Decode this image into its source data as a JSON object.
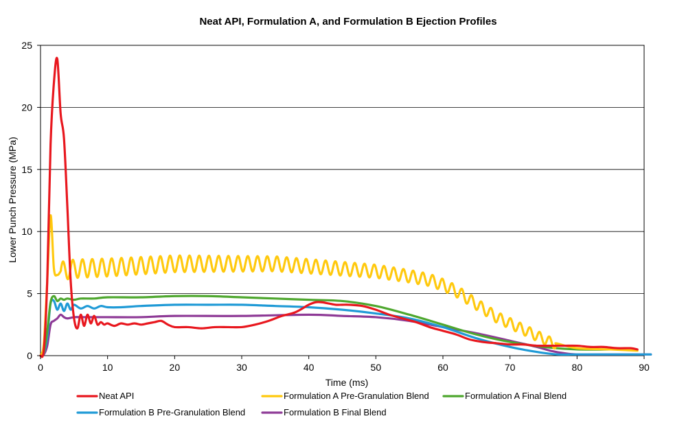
{
  "chart_data": {
    "type": "line",
    "title": "Neat API, Formulation A, and Formulation B Ejection Profiles",
    "xlabel": "Time (ms)",
    "ylabel": "Lower Punch Pressure (MPa)",
    "xlim": [
      0,
      90
    ],
    "ylim": [
      0,
      25
    ],
    "xticks": [
      0,
      10,
      20,
      30,
      40,
      50,
      60,
      70,
      80,
      90
    ],
    "yticks": [
      0,
      5,
      10,
      15,
      20,
      25
    ],
    "grid": "horizontal",
    "legend_position": "bottom",
    "series": [
      {
        "name": "Neat API",
        "color": "#e8171e",
        "x": [
          0,
          0.5,
          1,
          1.5,
          2,
          2.5,
          3,
          3.5,
          4,
          4.5,
          5,
          5.5,
          6,
          6.5,
          7,
          7.5,
          8,
          8.5,
          9,
          9.5,
          10,
          11,
          12,
          13,
          14,
          15,
          16,
          17,
          18,
          19,
          20,
          22,
          24,
          26,
          28,
          30,
          32,
          34,
          36,
          38,
          40,
          41,
          42,
          43,
          44,
          45,
          46,
          48,
          50,
          52,
          54,
          56,
          58,
          60,
          62,
          64,
          66,
          68,
          70,
          72,
          74,
          76,
          78,
          80,
          82,
          84,
          86,
          88,
          89
        ],
        "y": [
          0,
          0.5,
          6,
          17,
          22,
          23.9,
          19.5,
          17.5,
          12,
          6,
          3,
          2.2,
          3.3,
          2.4,
          3.3,
          2.6,
          3.2,
          2.5,
          2.7,
          2.5,
          2.6,
          2.4,
          2.6,
          2.5,
          2.6,
          2.5,
          2.6,
          2.7,
          2.8,
          2.5,
          2.3,
          2.3,
          2.2,
          2.3,
          2.3,
          2.3,
          2.5,
          2.8,
          3.2,
          3.5,
          4.1,
          4.3,
          4.3,
          4.2,
          4.1,
          4.1,
          4.1,
          4.0,
          3.7,
          3.3,
          3.0,
          2.7,
          2.3,
          2.0,
          1.7,
          1.3,
          1.1,
          1.0,
          0.9,
          0.9,
          0.8,
          0.8,
          0.8,
          0.8,
          0.7,
          0.7,
          0.6,
          0.6,
          0.5
        ]
      },
      {
        "name": "Formulation A Pre-Granulation Blend",
        "color": "#ffc90e",
        "wave": {
          "x_start": 3,
          "x_end": 77,
          "period": 1.45,
          "amp_start": 0.75,
          "amp_end": 0.4
        },
        "x": [
          0,
          0.5,
          1,
          1.5,
          2,
          2.5,
          3,
          5,
          10,
          20,
          30,
          35,
          40,
          45,
          50,
          55,
          58,
          60,
          62,
          64,
          66,
          68,
          70,
          72,
          74,
          76,
          77,
          80,
          85,
          89
        ],
        "y": [
          0,
          1,
          6,
          11.3,
          7,
          6.5,
          6.8,
          7.0,
          7.1,
          7.4,
          7.4,
          7.4,
          7.2,
          7.0,
          6.8,
          6.4,
          6.1,
          5.7,
          5.2,
          4.5,
          3.8,
          3.1,
          2.6,
          2.1,
          1.6,
          1.1,
          0.9,
          0.6,
          0.5,
          0.4
        ]
      },
      {
        "name": "Formulation A Final Blend",
        "color": "#4ea72e",
        "x": [
          0,
          0.5,
          1,
          1.5,
          2,
          2.5,
          3,
          3.5,
          4,
          5,
          6,
          8,
          10,
          15,
          20,
          25,
          30,
          35,
          40,
          45,
          50,
          55,
          60,
          65,
          70,
          75,
          80,
          85
        ],
        "y": [
          0,
          0.3,
          2,
          4.3,
          4.8,
          4.4,
          4.6,
          4.5,
          4.6,
          4.5,
          4.6,
          4.6,
          4.7,
          4.7,
          4.8,
          4.8,
          4.7,
          4.6,
          4.5,
          4.4,
          4.0,
          3.3,
          2.5,
          1.7,
          1.1,
          0.7,
          0.5,
          0.5
        ]
      },
      {
        "name": "Formulation B Pre-Granulation Blend",
        "color": "#1f9ad6",
        "x": [
          0,
          0.5,
          1,
          1.5,
          2,
          2.5,
          3,
          3.5,
          4,
          4.5,
          5,
          6,
          7,
          8,
          9,
          10,
          12,
          15,
          20,
          25,
          30,
          35,
          40,
          45,
          50,
          55,
          60,
          65,
          70,
          74,
          77,
          80,
          85,
          90,
          91
        ],
        "y": [
          0,
          0.2,
          1.5,
          4.2,
          4.4,
          3.7,
          4.2,
          3.6,
          4.2,
          3.7,
          4.1,
          3.8,
          4.0,
          3.8,
          4.0,
          3.9,
          3.9,
          4.0,
          4.1,
          4.1,
          4.1,
          4.0,
          3.9,
          3.7,
          3.4,
          3.0,
          2.3,
          1.4,
          0.7,
          0.3,
          0.1,
          0.1,
          0.1,
          0.1,
          0.1
        ]
      },
      {
        "name": "Formulation B Final Blend",
        "color": "#8e3a96",
        "x": [
          0,
          0.5,
          1,
          1.5,
          2,
          2.5,
          3,
          3.5,
          4,
          5,
          6,
          8,
          10,
          15,
          20,
          30,
          40,
          45,
          50,
          55,
          60,
          65,
          70,
          74,
          76,
          78,
          80,
          85,
          90,
          91
        ],
        "y": [
          0,
          0.1,
          0.8,
          2.5,
          2.8,
          3.0,
          3.3,
          3.1,
          3.0,
          3.1,
          3.1,
          3.1,
          3.1,
          3.1,
          3.2,
          3.2,
          3.3,
          3.2,
          3.1,
          2.8,
          2.3,
          1.8,
          1.2,
          0.7,
          0.4,
          0.2,
          0.1,
          0.1,
          0.1,
          0.1
        ]
      }
    ]
  }
}
